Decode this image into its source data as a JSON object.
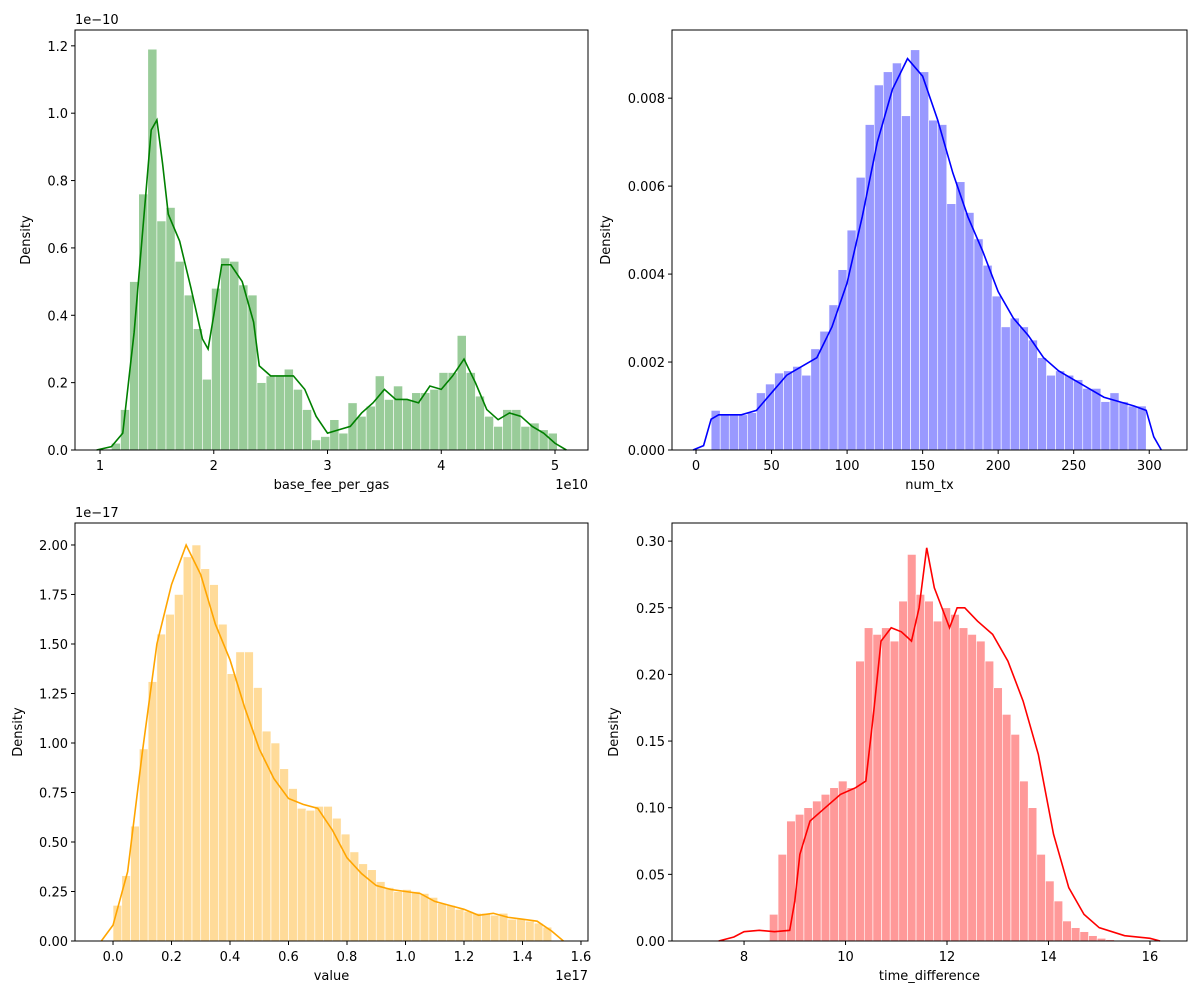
{
  "chart_data": [
    {
      "type": "histogram",
      "xlabel": "base_fee_per_gas",
      "ylabel": "Density",
      "x_offset_label": "1e10",
      "y_offset_label": "1e−10",
      "bar_color": "#99cc99",
      "line_color": "#008000",
      "bins": [
        1.1,
        1.18,
        1.26,
        1.34,
        1.42,
        1.5,
        1.58,
        1.66,
        1.74,
        1.82,
        1.9,
        1.98,
        2.06,
        2.14,
        2.22,
        2.3,
        2.38,
        2.46,
        2.54,
        2.62,
        2.7,
        2.78,
        2.86,
        2.94,
        3.02,
        3.1,
        3.18,
        3.26,
        3.34,
        3.42,
        3.5,
        3.58,
        3.66,
        3.74,
        3.82,
        3.9,
        3.98,
        4.06,
        4.14,
        4.22,
        4.3,
        4.38,
        4.46,
        4.54,
        4.62,
        4.7,
        4.78,
        4.86,
        4.94,
        5.02
      ],
      "values": [
        0.02,
        0.12,
        0.5,
        0.76,
        1.19,
        0.68,
        0.72,
        0.56,
        0.46,
        0.36,
        0.21,
        0.48,
        0.57,
        0.56,
        0.49,
        0.46,
        0.2,
        0.22,
        0.22,
        0.24,
        0.18,
        0.12,
        0.03,
        0.04,
        0.09,
        0.05,
        0.14,
        0.1,
        0.13,
        0.22,
        0.15,
        0.19,
        0.15,
        0.17,
        0.17,
        0.18,
        0.23,
        0.23,
        0.34,
        0.23,
        0.16,
        0.1,
        0.07,
        0.12,
        0.12,
        0.07,
        0.08,
        0.06,
        0.05
      ],
      "kde_x": [
        0.97,
        1.1,
        1.2,
        1.3,
        1.4,
        1.45,
        1.5,
        1.55,
        1.6,
        1.7,
        1.8,
        1.9,
        1.95,
        2.0,
        2.07,
        2.15,
        2.25,
        2.35,
        2.4,
        2.5,
        2.6,
        2.7,
        2.8,
        2.9,
        3.0,
        3.1,
        3.2,
        3.3,
        3.4,
        3.5,
        3.6,
        3.7,
        3.8,
        3.9,
        4.0,
        4.1,
        4.2,
        4.3,
        4.4,
        4.5,
        4.6,
        4.7,
        4.8,
        4.9,
        5.0,
        5.1
      ],
      "kde_y": [
        0,
        0.01,
        0.05,
        0.35,
        0.75,
        0.95,
        0.98,
        0.85,
        0.7,
        0.62,
        0.48,
        0.33,
        0.3,
        0.4,
        0.55,
        0.55,
        0.5,
        0.38,
        0.25,
        0.22,
        0.22,
        0.22,
        0.18,
        0.1,
        0.05,
        0.06,
        0.07,
        0.11,
        0.14,
        0.18,
        0.15,
        0.15,
        0.14,
        0.19,
        0.18,
        0.22,
        0.27,
        0.2,
        0.12,
        0.09,
        0.11,
        0.1,
        0.07,
        0.05,
        0.02,
        0
      ],
      "xlim": [
        0.78,
        5.29
      ],
      "xticks": [
        1,
        2,
        3,
        4,
        5
      ],
      "ylim": [
        0,
        1.247
      ],
      "yticks": [
        {
          "value": 0,
          "label": "0.0"
        },
        0.2,
        0.4,
        0.6,
        0.8,
        {
          "value": 1,
          "label": "1.0"
        },
        1.2
      ]
    },
    {
      "type": "histogram",
      "xlabel": "num_tx",
      "ylabel": "Density",
      "bar_color": "#9999ff",
      "line_color": "#0000ff",
      "bins": [
        10,
        16,
        22,
        28,
        34,
        40,
        46,
        52,
        58,
        64,
        70,
        76,
        82,
        88,
        94,
        100,
        106,
        112,
        118,
        124,
        130,
        136,
        142,
        148,
        154,
        160,
        166,
        172,
        178,
        184,
        190,
        196,
        202,
        208,
        214,
        220,
        226,
        232,
        238,
        244,
        250,
        256,
        262,
        268,
        274,
        280,
        286,
        292,
        298
      ],
      "values": [
        0.0009,
        0.0008,
        0.0008,
        0.0008,
        0.00085,
        0.0013,
        0.0015,
        0.00175,
        0.0018,
        0.0019,
        0.0017,
        0.0023,
        0.0027,
        0.0033,
        0.0041,
        0.005,
        0.0062,
        0.0074,
        0.0083,
        0.0086,
        0.0088,
        0.0076,
        0.0091,
        0.0086,
        0.0075,
        0.0074,
        0.0056,
        0.0061,
        0.0054,
        0.0048,
        0.0042,
        0.0035,
        0.0028,
        0.003,
        0.0028,
        0.0025,
        0.0021,
        0.0017,
        0.0018,
        0.0017,
        0.0016,
        0.0014,
        0.0014,
        0.0011,
        0.0013,
        0.0011,
        0.001,
        0.001
      ],
      "kde_x": [
        -2,
        5,
        10,
        15,
        30,
        40,
        50,
        60,
        70,
        80,
        90,
        100,
        110,
        120,
        130,
        140,
        150,
        160,
        170,
        180,
        190,
        200,
        210,
        220,
        230,
        240,
        250,
        260,
        270,
        280,
        290,
        298,
        303,
        308
      ],
      "kde_y": [
        0,
        0.0001,
        0.0007,
        0.0008,
        0.0008,
        0.0009,
        0.0013,
        0.0017,
        0.0019,
        0.0021,
        0.0028,
        0.0038,
        0.0053,
        0.007,
        0.0082,
        0.0089,
        0.0085,
        0.0075,
        0.0063,
        0.0053,
        0.0045,
        0.0036,
        0.003,
        0.0026,
        0.0021,
        0.0018,
        0.0016,
        0.0014,
        0.0012,
        0.0011,
        0.001,
        0.0009,
        0.0003,
        0
      ],
      "xlim": [
        -15.9,
        325
      ],
      "xticks": [
        0,
        50,
        100,
        150,
        200,
        250,
        300
      ],
      "ylim": [
        0,
        0.00955
      ],
      "yticks": [
        {
          "value": 0,
          "label": "0.000"
        },
        0.002,
        0.004,
        0.006,
        0.008
      ]
    },
    {
      "type": "histogram",
      "xlabel": "value",
      "ylabel": "Density",
      "x_offset_label": "1e17",
      "y_offset_label": "1e−17",
      "bar_color": "#ffdb99",
      "line_color": "#ffa500",
      "bins": [
        0.0,
        0.03,
        0.06,
        0.09,
        0.12,
        0.15,
        0.18,
        0.21,
        0.24,
        0.27,
        0.3,
        0.33,
        0.36,
        0.39,
        0.42,
        0.45,
        0.48,
        0.51,
        0.54,
        0.57,
        0.6,
        0.63,
        0.66,
        0.69,
        0.72,
        0.75,
        0.78,
        0.81,
        0.84,
        0.87,
        0.9,
        0.93,
        0.96,
        0.99,
        1.02,
        1.05,
        1.08,
        1.11,
        1.14,
        1.17,
        1.2,
        1.23,
        1.26,
        1.29,
        1.32,
        1.35,
        1.38,
        1.41,
        1.44,
        1.47,
        1.5
      ],
      "values": [
        0.18,
        0.33,
        0.58,
        0.97,
        1.31,
        1.55,
        1.65,
        1.75,
        1.94,
        2.0,
        1.88,
        1.8,
        1.6,
        1.35,
        1.46,
        1.46,
        1.28,
        1.06,
        1.0,
        0.87,
        0.77,
        0.67,
        0.66,
        0.68,
        0.68,
        0.62,
        0.54,
        0.45,
        0.39,
        0.36,
        0.3,
        0.27,
        0.25,
        0.26,
        0.25,
        0.24,
        0.22,
        0.19,
        0.18,
        0.16,
        0.15,
        0.14,
        0.14,
        0.13,
        0.14,
        0.11,
        0.11,
        0.1,
        0.09,
        0.07
      ],
      "kde_x": [
        -0.04,
        0,
        0.05,
        0.1,
        0.15,
        0.2,
        0.25,
        0.3,
        0.35,
        0.4,
        0.45,
        0.5,
        0.55,
        0.6,
        0.65,
        0.7,
        0.75,
        0.8,
        0.85,
        0.9,
        0.95,
        1.0,
        1.05,
        1.1,
        1.15,
        1.2,
        1.25,
        1.3,
        1.35,
        1.4,
        1.45,
        1.5,
        1.54
      ],
      "kde_y": [
        0,
        0.08,
        0.35,
        0.95,
        1.5,
        1.8,
        2.0,
        1.85,
        1.6,
        1.42,
        1.18,
        0.97,
        0.82,
        0.72,
        0.69,
        0.67,
        0.56,
        0.42,
        0.34,
        0.28,
        0.26,
        0.25,
        0.24,
        0.2,
        0.18,
        0.16,
        0.13,
        0.14,
        0.12,
        0.11,
        0.1,
        0.05,
        0
      ],
      "xlim": [
        -0.13,
        1.624
      ],
      "xticks": [
        {
          "value": 0,
          "label": "0.0"
        },
        0.2,
        0.4,
        0.6,
        0.8,
        {
          "value": 1,
          "label": "1.0"
        },
        1.2,
        1.4,
        1.6
      ],
      "ylim": [
        0,
        2.111
      ],
      "yticks": [
        {
          "value": 0,
          "label": "0.00"
        },
        0.25,
        {
          "value": 0.5,
          "label": "0.50"
        },
        0.75,
        {
          "value": 1,
          "label": "1.00"
        },
        1.25,
        {
          "value": 1.5,
          "label": "1.50"
        },
        1.75,
        {
          "value": 2,
          "label": "2.00"
        }
      ]
    },
    {
      "type": "histogram",
      "xlabel": "time_difference",
      "ylabel": "Density",
      "bar_color": "#ff9999",
      "line_color": "#ff0000",
      "bins": [
        8.5,
        8.67,
        8.84,
        9.01,
        9.18,
        9.35,
        9.52,
        9.69,
        9.86,
        10.03,
        10.2,
        10.37,
        10.54,
        10.71,
        10.88,
        11.05,
        11.22,
        11.39,
        11.56,
        11.73,
        11.9,
        12.07,
        12.24,
        12.41,
        12.58,
        12.75,
        12.92,
        13.09,
        13.26,
        13.43,
        13.6,
        13.77,
        13.94,
        14.11,
        14.28,
        14.45,
        14.62,
        14.79,
        14.96,
        15.13,
        15.3
      ],
      "values": [
        0.02,
        0.065,
        0.09,
        0.095,
        0.1,
        0.105,
        0.11,
        0.115,
        0.12,
        0.115,
        0.21,
        0.235,
        0.23,
        0.235,
        0.225,
        0.255,
        0.29,
        0.26,
        0.255,
        0.24,
        0.25,
        0.245,
        0.235,
        0.23,
        0.225,
        0.21,
        0.19,
        0.17,
        0.155,
        0.12,
        0.1,
        0.065,
        0.045,
        0.03,
        0.015,
        0.01,
        0.007,
        0.004,
        0.002,
        0.001
      ],
      "kde_x": [
        7.5,
        7.8,
        8.0,
        8.3,
        8.6,
        8.9,
        9.0,
        9.1,
        9.3,
        9.6,
        9.9,
        10.2,
        10.4,
        10.55,
        10.7,
        10.9,
        11.1,
        11.3,
        11.45,
        11.6,
        11.75,
        11.9,
        12.05,
        12.2,
        12.35,
        12.6,
        12.9,
        13.2,
        13.5,
        13.8,
        14.1,
        14.4,
        14.7,
        15.0,
        15.5,
        16.0,
        16.2
      ],
      "kde_y": [
        0,
        0.003,
        0.007,
        0.008,
        0.007,
        0.008,
        0.03,
        0.065,
        0.09,
        0.1,
        0.11,
        0.115,
        0.12,
        0.17,
        0.225,
        0.235,
        0.232,
        0.225,
        0.25,
        0.295,
        0.265,
        0.25,
        0.235,
        0.25,
        0.25,
        0.24,
        0.23,
        0.21,
        0.18,
        0.14,
        0.08,
        0.04,
        0.02,
        0.01,
        0.004,
        0.002,
        0
      ],
      "xlim": [
        6.58,
        16.73
      ],
      "xticks": [
        8,
        10,
        12,
        14,
        16
      ],
      "ylim": [
        0,
        0.3136
      ],
      "yticks": [
        {
          "value": 0,
          "label": "0.00"
        },
        0.05,
        {
          "value": 0.1,
          "label": "0.10"
        },
        0.15,
        {
          "value": 0.2,
          "label": "0.20"
        },
        0.25,
        {
          "value": 0.3,
          "label": "0.30"
        }
      ]
    }
  ]
}
